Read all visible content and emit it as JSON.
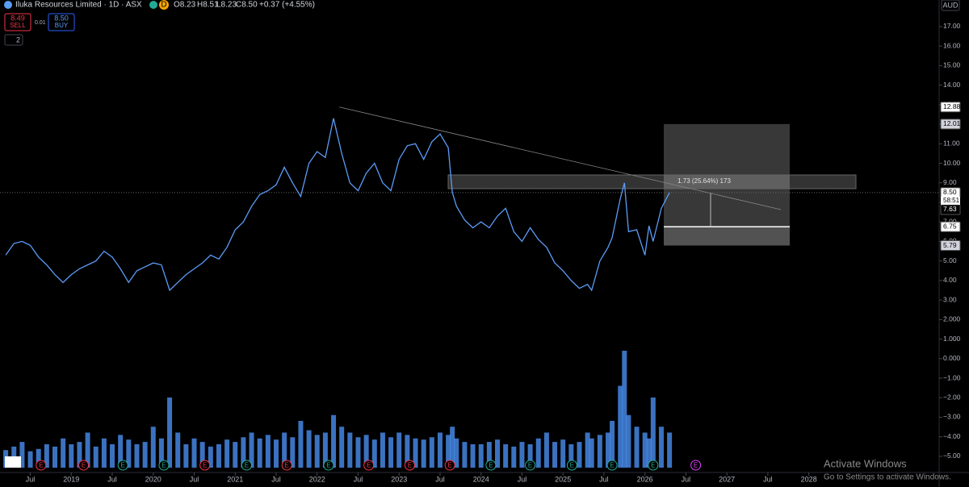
{
  "toolbar": {
    "title": "Iluka Resources Limited · 1D · ASX",
    "badge": "D",
    "open": "O8.23",
    "high": "H8.51",
    "low": "L8.23",
    "close": "C8.50",
    "change": "+0.37 (+4.55%)",
    "sell_price": "8.49",
    "sell": "SELL",
    "spread": "0.01",
    "buy_price": "8.50",
    "buy": "BUY",
    "indicators": "2",
    "currency": "AUD"
  },
  "chart_data": {
    "type": "line",
    "x": [
      2018.2,
      2018.3,
      2018.4,
      2018.5,
      2018.6,
      2018.7,
      2018.8,
      2018.9,
      2019.0,
      2019.1,
      2019.2,
      2019.3,
      2019.4,
      2019.5,
      2019.6,
      2019.7,
      2019.8,
      2019.9,
      2020.0,
      2020.1,
      2020.2,
      2020.3,
      2020.4,
      2020.5,
      2020.6,
      2020.7,
      2020.8,
      2020.9,
      2021.0,
      2021.1,
      2021.2,
      2021.3,
      2021.4,
      2021.5,
      2021.6,
      2021.7,
      2021.8,
      2021.9,
      2022.0,
      2022.1,
      2022.2,
      2022.3,
      2022.4,
      2022.5,
      2022.6,
      2022.7,
      2022.8,
      2022.9,
      2023.0,
      2023.1,
      2023.2,
      2023.3,
      2023.4,
      2023.5,
      2023.6,
      2023.65,
      2023.7,
      2023.8,
      2023.9,
      2024.0,
      2024.1,
      2024.2,
      2024.3,
      2024.4,
      2024.5,
      2024.6,
      2024.7,
      2024.8,
      2024.9,
      2025.0,
      2025.1,
      2025.2,
      2025.3,
      2025.35,
      2025.45,
      2025.55,
      2025.6,
      2025.7,
      2025.75,
      2025.8,
      2025.9,
      2026.0,
      2026.05,
      2026.1,
      2026.2,
      2026.3
    ],
    "series": [
      {
        "name": "Price",
        "color": "#5b9cf6",
        "values": [
          5.3,
          5.9,
          6.0,
          5.8,
          5.2,
          4.8,
          4.3,
          3.9,
          4.3,
          4.6,
          4.8,
          5.0,
          5.5,
          5.2,
          4.6,
          3.9,
          4.5,
          4.7,
          4.9,
          4.8,
          3.5,
          3.9,
          4.3,
          4.6,
          4.9,
          5.3,
          5.1,
          5.7,
          6.6,
          7.0,
          7.8,
          8.4,
          8.6,
          8.9,
          9.8,
          9.0,
          8.3,
          10.0,
          10.6,
          10.3,
          12.3,
          10.5,
          9.0,
          8.6,
          9.5,
          10.0,
          9.0,
          8.6,
          10.2,
          10.9,
          11.0,
          10.2,
          11.1,
          11.5,
          10.8,
          8.5,
          7.8,
          7.1,
          6.7,
          7.0,
          6.7,
          7.3,
          7.7,
          6.5,
          6.0,
          6.7,
          6.1,
          5.7,
          4.9,
          4.5,
          4.0,
          3.6,
          3.8,
          3.5,
          5.0,
          5.7,
          6.2,
          8.2,
          9.0,
          6.5,
          6.6,
          5.3,
          6.8,
          6.0,
          7.7,
          8.5
        ]
      },
      {
        "name": "Volume",
        "color": "#4a8ff0",
        "values": [
          15,
          18,
          22,
          14,
          16,
          20,
          18,
          25,
          20,
          22,
          30,
          18,
          25,
          20,
          28,
          24,
          20,
          22,
          35,
          25,
          60,
          30,
          20,
          25,
          22,
          18,
          20,
          24,
          22,
          26,
          30,
          25,
          28,
          24,
          30,
          26,
          40,
          32,
          28,
          30,
          45,
          35,
          30,
          26,
          28,
          24,
          30,
          26,
          30,
          28,
          25,
          24,
          26,
          30,
          28,
          35,
          25,
          22,
          20,
          20,
          22,
          24,
          20,
          18,
          22,
          20,
          25,
          30,
          22,
          24,
          20,
          22,
          30,
          25,
          28,
          30,
          40,
          70,
          100,
          45,
          35,
          30,
          25,
          60,
          35,
          30
        ]
      }
    ],
    "volume_lim": [
      0,
      100
    ],
    "xlim": [
      2018.13,
      2029.59
    ],
    "xticks": [
      {
        "value": 2018.5,
        "label": "Jul"
      },
      {
        "value": 2019,
        "label": "2019"
      },
      {
        "value": 2019.5,
        "label": "Jul"
      },
      {
        "value": 2020,
        "label": "2020"
      },
      {
        "value": 2020.5,
        "label": "Jul"
      },
      {
        "value": 2021,
        "label": "2021"
      },
      {
        "value": 2021.5,
        "label": "Jul"
      },
      {
        "value": 2022,
        "label": "2022"
      },
      {
        "value": 2022.5,
        "label": "Jul"
      },
      {
        "value": 2023,
        "label": "2023"
      },
      {
        "value": 2023.5,
        "label": "Jul"
      },
      {
        "value": 2024,
        "label": "2024"
      },
      {
        "value": 2024.5,
        "label": "Jul"
      },
      {
        "value": 2025,
        "label": "2025"
      },
      {
        "value": 2025.5,
        "label": "Jul"
      },
      {
        "value": 2026,
        "label": "2026"
      },
      {
        "value": 2026.5,
        "label": "Jul"
      },
      {
        "value": 2027,
        "label": "2027"
      },
      {
        "value": 2027.5,
        "label": "Jul"
      },
      {
        "value": 2028,
        "label": "2028"
      }
    ],
    "ylim": [
      -5.58,
      18.36
    ],
    "yticks": [
      {
        "value": 17,
        "label": "17.00"
      },
      {
        "value": 16,
        "label": "16.00"
      },
      {
        "value": 15,
        "label": "15.00"
      },
      {
        "value": 14,
        "label": "14.00"
      },
      {
        "value": 13,
        "label": "13.00"
      },
      {
        "value": 12,
        "label": "12.00"
      },
      {
        "value": 11,
        "label": "11.00"
      },
      {
        "value": 10,
        "label": "10.00"
      },
      {
        "value": 9,
        "label": "9.00"
      },
      {
        "value": 8,
        "label": "8.00"
      },
      {
        "value": 7,
        "label": "7.00"
      },
      {
        "value": 6,
        "label": "6.00"
      },
      {
        "value": 5,
        "label": "5.00"
      },
      {
        "value": 4,
        "label": "4.00"
      },
      {
        "value": 3,
        "label": "3.00"
      },
      {
        "value": 2,
        "label": "2.000"
      },
      {
        "value": 1,
        "label": "1.000"
      },
      {
        "value": 0,
        "label": "0.000"
      },
      {
        "value": -1,
        "label": "−1.00"
      },
      {
        "value": -2,
        "label": "−2.00"
      },
      {
        "value": -3,
        "label": "−3.00"
      },
      {
        "value": -4,
        "label": "−4.00"
      },
      {
        "value": -5,
        "label": "−5.00"
      }
    ],
    "price_labels": [
      {
        "value": 12.88,
        "label": "12.88"
      },
      {
        "value": 12.01,
        "label": "12.01"
      },
      {
        "value": 8.5,
        "label": "8.50"
      },
      {
        "value": 7.63,
        "label": "7.63"
      },
      {
        "value": 6.75,
        "label": "6.75"
      },
      {
        "value": 5.79,
        "label": "5.79"
      }
    ],
    "countdown": "58:51",
    "trendline_x": [
      2022.27,
      2027.66
    ],
    "measure_label": "1.73 (25.64%) 173",
    "earnings": {
      "label": "E",
      "x": [
        2018.63,
        2019.15,
        2019.63,
        2020.13,
        2020.63,
        2021.14,
        2021.63,
        2022.14,
        2022.63,
        2023.13,
        2023.62,
        2024.12,
        2024.6,
        2025.11,
        2025.6,
        2026.1,
        2026.62
      ],
      "colors": [
        "#f23645",
        "#f23645",
        "#22ab94",
        "#22ab94",
        "#f23645",
        "#22ab94",
        "#f23645",
        "#22ab94",
        "#f23645",
        "#f23645",
        "#f23645",
        "#22ab94",
        "#22ab94",
        "#22ab94",
        "#22ab94",
        "#22ab94",
        "#e040fb"
      ]
    }
  },
  "watermark": {
    "title": "Activate Windows",
    "subtitle": "Go to Settings to activate Windows."
  }
}
